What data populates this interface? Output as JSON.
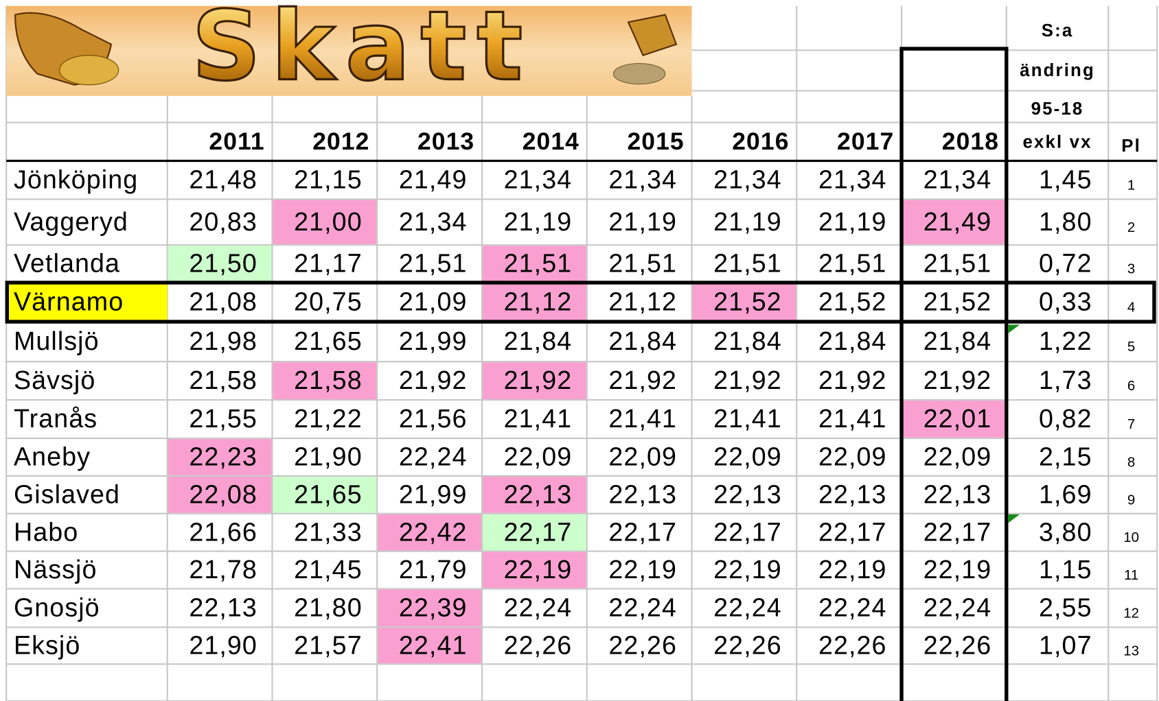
{
  "header": {
    "title": "Skatt"
  },
  "table": {
    "columns": [
      "2011",
      "2012",
      "2013",
      "2014",
      "2015",
      "2016",
      "2017",
      "2018"
    ],
    "sum_header": [
      "S:a",
      "ändring",
      "95-18",
      "exkl vx"
    ],
    "rank_header": "Pl",
    "rows": [
      {
        "name": "Jönköping",
        "values": [
          "21,48",
          "21,15",
          "21,49",
          "21,34",
          "21,34",
          "21,34",
          "21,34",
          "21,34"
        ],
        "change": "1,45",
        "rank": 1
      },
      {
        "name": "Vaggeryd",
        "values": [
          "20,83",
          "21,00",
          "21,34",
          "21,19",
          "21,19",
          "21,19",
          "21,19",
          "21,49"
        ],
        "change": "1,80",
        "rank": 2
      },
      {
        "name": "Vetlanda",
        "values": [
          "21,50",
          "21,17",
          "21,51",
          "21,51",
          "21,51",
          "21,51",
          "21,51",
          "21,51"
        ],
        "change": "0,72",
        "rank": 3
      },
      {
        "name": "Värnamo",
        "values": [
          "21,08",
          "20,75",
          "21,09",
          "21,12",
          "21,12",
          "21,52",
          "21,52",
          "21,52"
        ],
        "change": "0,33",
        "rank": 4
      },
      {
        "name": "Mullsjö",
        "values": [
          "21,98",
          "21,65",
          "21,99",
          "21,84",
          "21,84",
          "21,84",
          "21,84",
          "21,84"
        ],
        "change": "1,22",
        "rank": 5
      },
      {
        "name": "Sävsjö",
        "values": [
          "21,58",
          "21,58",
          "21,92",
          "21,92",
          "21,92",
          "21,92",
          "21,92",
          "21,92"
        ],
        "change": "1,73",
        "rank": 6
      },
      {
        "name": "Tranås",
        "values": [
          "21,55",
          "21,22",
          "21,56",
          "21,41",
          "21,41",
          "21,41",
          "21,41",
          "22,01"
        ],
        "change": "0,82",
        "rank": 7
      },
      {
        "name": "Aneby",
        "values": [
          "22,23",
          "21,90",
          "22,24",
          "22,09",
          "22,09",
          "22,09",
          "22,09",
          "22,09"
        ],
        "change": "2,15",
        "rank": 8
      },
      {
        "name": "Gislaved",
        "values": [
          "22,08",
          "21,65",
          "21,99",
          "22,13",
          "22,13",
          "22,13",
          "22,13",
          "22,13"
        ],
        "change": "1,69",
        "rank": 9
      },
      {
        "name": "Habo",
        "values": [
          "21,66",
          "21,33",
          "22,42",
          "22,17",
          "22,17",
          "22,17",
          "22,17",
          "22,17"
        ],
        "change": "3,80",
        "rank": 10
      },
      {
        "name": "Nässjö",
        "values": [
          "21,78",
          "21,45",
          "21,79",
          "22,19",
          "22,19",
          "22,19",
          "22,19",
          "22,19"
        ],
        "change": "1,15",
        "rank": 11
      },
      {
        "name": "Gnosjö",
        "values": [
          "22,13",
          "21,80",
          "22,39",
          "22,24",
          "22,24",
          "22,24",
          "22,24",
          "22,24"
        ],
        "change": "2,55",
        "rank": 12
      },
      {
        "name": "Eksjö",
        "values": [
          "21,90",
          "21,57",
          "22,41",
          "22,26",
          "22,26",
          "22,26",
          "22,26",
          "22,26"
        ],
        "change": "1,07",
        "rank": 13
      }
    ]
  }
}
